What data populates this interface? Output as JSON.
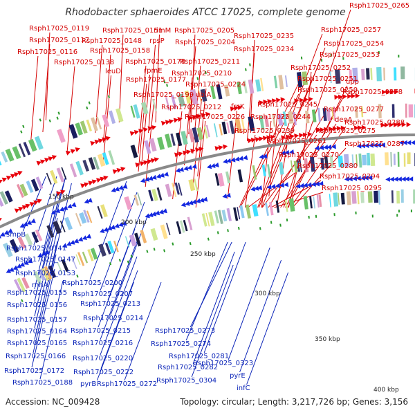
{
  "title": "Rhodobacter sphaeroides ATCC 17025, complete genome",
  "footer": {
    "accession": "Accession: NC_009428",
    "summary": "Topology: circular; Length: 3,217,726 bp; Genes: 3,156"
  },
  "colors": {
    "plus_strand": "#e8000a",
    "minus_strand": "#1428e0",
    "label_plus": "#d40000",
    "label_minus": "#0b24b8",
    "backbone": "#8a8a8a"
  },
  "kbp_marks": [
    "150 kbp",
    "200 kbp",
    "250 kbp",
    "300 kbp",
    "350 kbp",
    "400 kbp"
  ],
  "labels_plus": [
    "Rsph17025_0265",
    "Rsph17025_0119",
    "Rsph17025_0151",
    "rimM",
    "Rsph17025_0205",
    "Rsph17025_0117",
    "Rsph17025_0148",
    "rpsP",
    "Rsph17025_0204",
    "Rsph17025_0235",
    "Rsph17025_0257",
    "Rsph17025_0116",
    "Rsph17025_0158",
    "Rsph17025_0234",
    "Rsph17025_0254",
    "Rsph17025_0138",
    "Rsph17025_0178",
    "Rsph17025_0211",
    "Rsph17025_0253",
    "leuD",
    "rpmE",
    "Rsph17025_0210",
    "Rsph17025_0252",
    "Rsph17025_0177",
    "Rsph17025_0224",
    "Rsph17025_0251",
    "upp",
    "Rsph17025_0199",
    "ubiA",
    "Rsph17025_0250",
    "Rsph17025_0278",
    "Rsph17025_0212",
    "frcK",
    "Rsph17025_0245",
    "Rsph17025_0277",
    "Rsph17025_0226",
    "Rsph17025_0244",
    "deoA",
    "Rsph17025_0288",
    "Rsph17025_0239",
    "Rsph17025_0275",
    "Rsph17025_0261",
    "Rsph17025_0287",
    "Rsph17025_0270",
    "Rsph17025_0280",
    "Rsph17025_0294",
    "Rsph17025_0295"
  ],
  "labels_minus": [
    "smpB",
    "Rsph17025_0141",
    "Rsph17025_0147",
    "Rsph17025_0153",
    "rnhA",
    "Rsph17025_0200",
    "Rsph17025_0155",
    "Rsph17025_0207",
    "Rsph17025_0156",
    "Rsph17025_0213",
    "Rsph17025_0157",
    "Rsph17025_0214",
    "Rsph17025_0164",
    "Rsph17025_0215",
    "Rsph17025_0273",
    "Rsph17025_0165",
    "Rsph17025_0216",
    "Rsph17025_0274",
    "Rsph17025_0166",
    "Rsph17025_0220",
    "Rsph17025_0281",
    "Rsph17025_0323",
    "Rsph17025_0172",
    "Rsph17025_0222",
    "Rsph17025_0282",
    "pyrE",
    "Rsph17025_0188",
    "pyrB",
    "Rsph17025_0272",
    "Rsph17025_0304",
    "infC"
  ]
}
